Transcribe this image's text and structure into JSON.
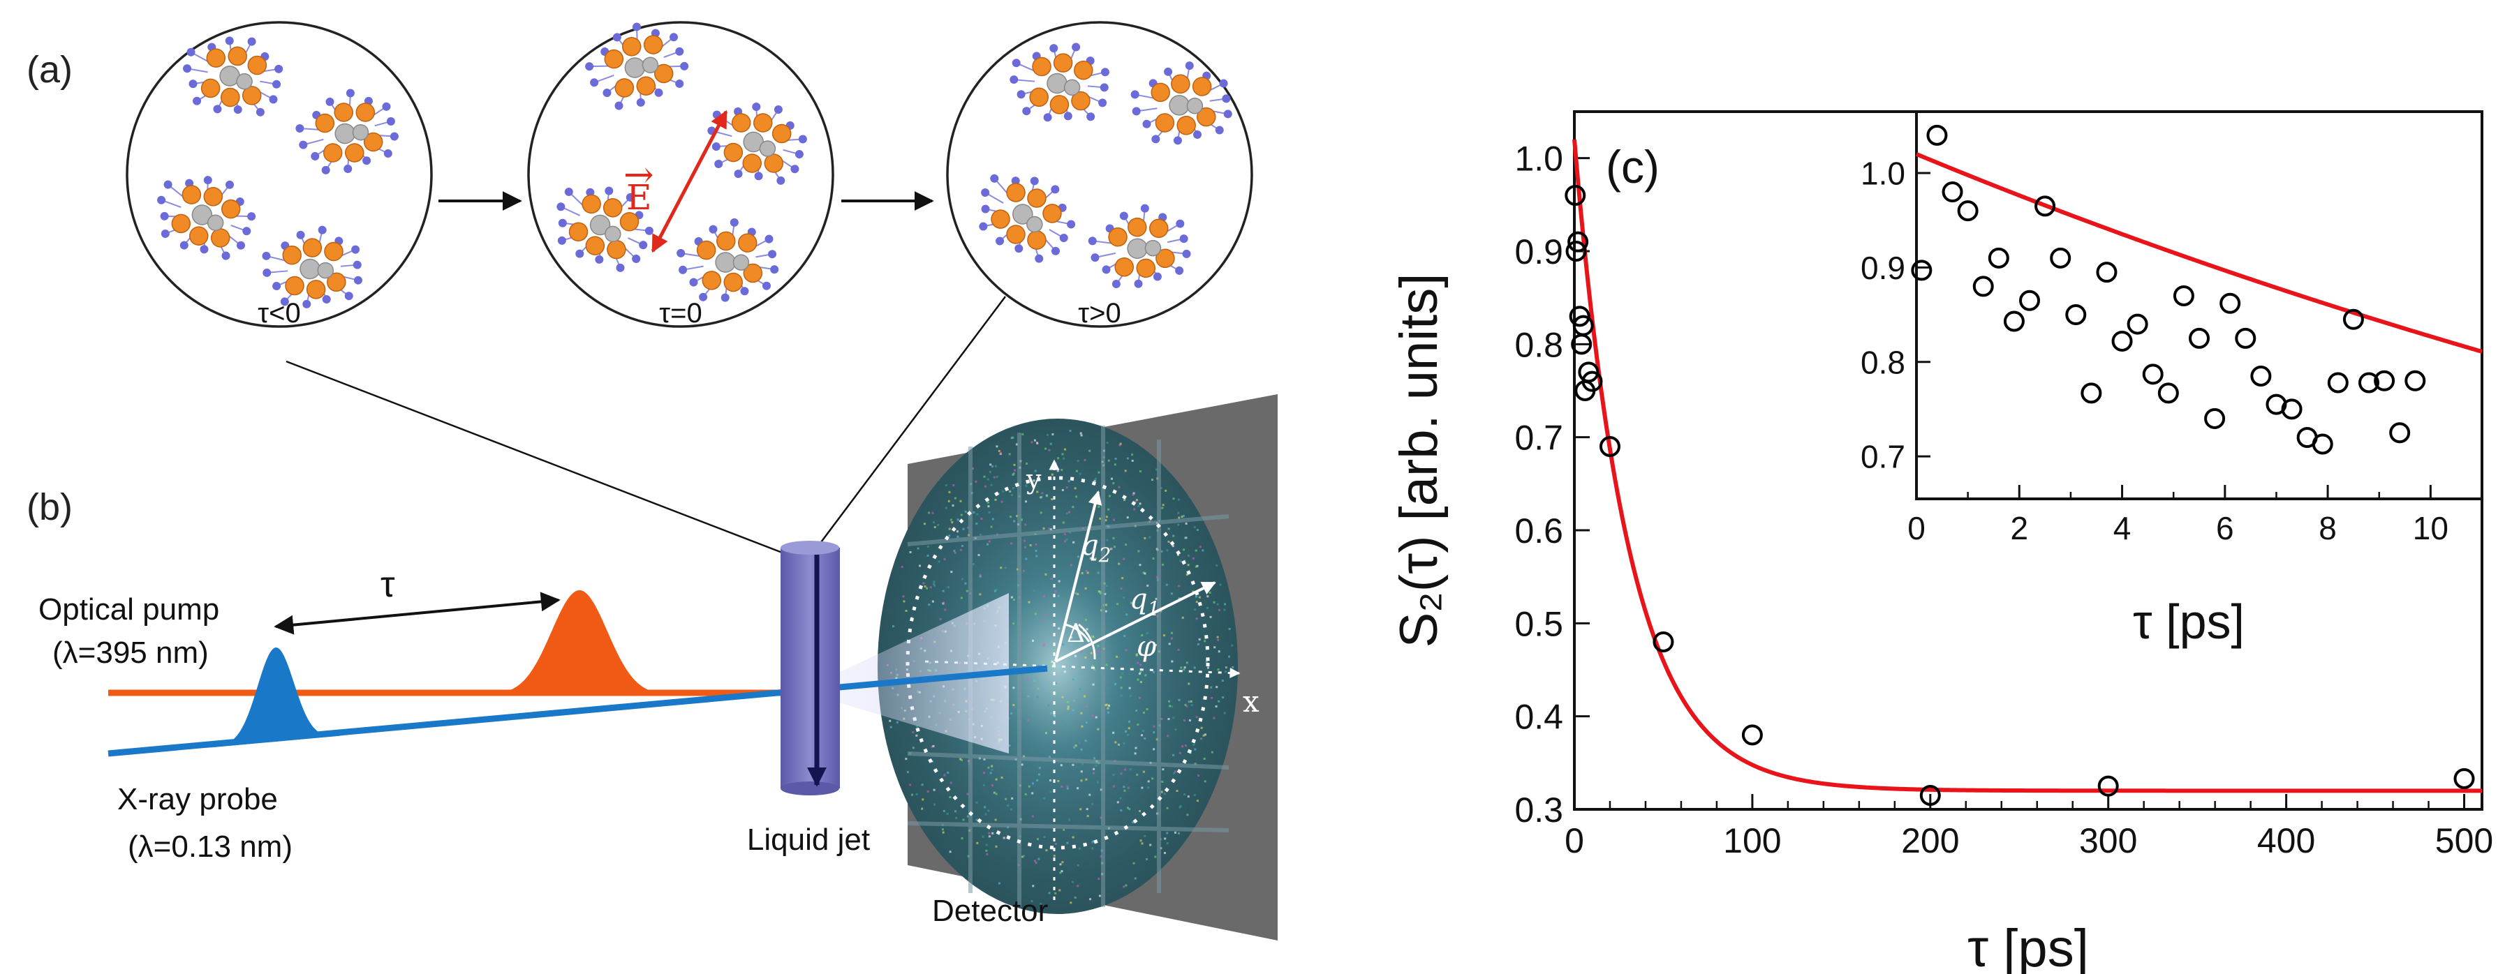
{
  "panel_a": {
    "label": "(a)",
    "states": [
      {
        "caption": "τ<0"
      },
      {
        "caption": "τ=0"
      },
      {
        "caption": "τ>0"
      }
    ],
    "field_label": "E",
    "field_vector_mark": "→",
    "colors": {
      "atom_metal": "#f08a24",
      "atom_center": "#b8b8b8",
      "atom_ligand": "#6a6ad8",
      "field": "#e0291c"
    }
  },
  "panel_b": {
    "label": "(b)",
    "delay_label": "τ",
    "pump": {
      "name": "Optical pump",
      "wavelength": "(λ=395 nm)",
      "color": "#f05a14"
    },
    "probe": {
      "name": "X-ray probe",
      "wavelength": "(λ=0.13 nm)",
      "color": "#1a78c8"
    },
    "jet_label": "Liquid jet",
    "detector_label": "Detector",
    "detector_axes": {
      "x": "x",
      "y": "y",
      "delta": "Δ",
      "phi": "φ",
      "q1": "q",
      "q1_sub": "1",
      "q2": "q",
      "q2_sub": "2"
    }
  },
  "chart_data": [
    {
      "type": "scatter",
      "panel_label": "(c)",
      "title": "",
      "xlabel": "τ [ps]",
      "ylabel": "S₂(τ) [arb. units]",
      "xlim": [
        0,
        510
      ],
      "ylim": [
        0.3,
        1.05
      ],
      "xticks": [
        0,
        100,
        200,
        300,
        400,
        500
      ],
      "yticks": [
        0.3,
        0.4,
        0.5,
        0.6,
        0.7,
        0.8,
        0.9,
        1.0
      ],
      "series": [
        {
          "name": "data",
          "marker": "open-circle",
          "color": "#000000",
          "x": [
            0.5,
            1,
            2,
            3,
            4,
            5,
            6,
            8,
            10,
            20,
            50,
            100,
            200,
            300,
            500
          ],
          "y": [
            0.96,
            0.9,
            0.91,
            0.83,
            0.8,
            0.82,
            0.75,
            0.77,
            0.76,
            0.69,
            0.48,
            0.38,
            0.315,
            0.325,
            0.333
          ]
        },
        {
          "name": "fit",
          "type": "line",
          "color": "#e8141a",
          "model": "exp_decay",
          "amplitude": 0.7,
          "tau": 31,
          "offset": 0.32
        }
      ]
    },
    {
      "type": "scatter",
      "inset": true,
      "xlabel": "τ [ps]",
      "ylabel": "",
      "xlim": [
        0,
        11
      ],
      "ylim": [
        0.655,
        1.065
      ],
      "xticks": [
        0,
        2,
        4,
        6,
        8,
        10
      ],
      "yticks": [
        0.7,
        0.8,
        0.9,
        1.0
      ],
      "series": [
        {
          "name": "data",
          "marker": "open-circle",
          "color": "#000000",
          "x": [
            0.1,
            0.4,
            0.7,
            1.0,
            1.3,
            1.6,
            1.9,
            2.2,
            2.5,
            2.8,
            3.1,
            3.4,
            3.7,
            4.0,
            4.3,
            4.6,
            4.9,
            5.2,
            5.5,
            5.8,
            6.1,
            6.4,
            6.7,
            7.0,
            7.3,
            7.6,
            7.9,
            8.2,
            8.5,
            8.8,
            9.1,
            9.4,
            9.7
          ],
          "y": [
            0.897,
            1.04,
            0.98,
            0.96,
            0.88,
            0.91,
            0.843,
            0.865,
            0.965,
            0.91,
            0.85,
            0.767,
            0.895,
            0.822,
            0.84,
            0.787,
            0.767,
            0.87,
            0.825,
            0.74,
            0.862,
            0.825,
            0.785,
            0.755,
            0.75,
            0.72,
            0.713,
            0.778,
            0.845,
            0.778,
            0.78,
            0.725,
            0.78
          ]
        },
        {
          "name": "fit",
          "type": "line",
          "color": "#e8141a",
          "model": "exp_decay",
          "amplitude": 0.7,
          "tau": 31,
          "offset": 0.32
        }
      ]
    }
  ]
}
